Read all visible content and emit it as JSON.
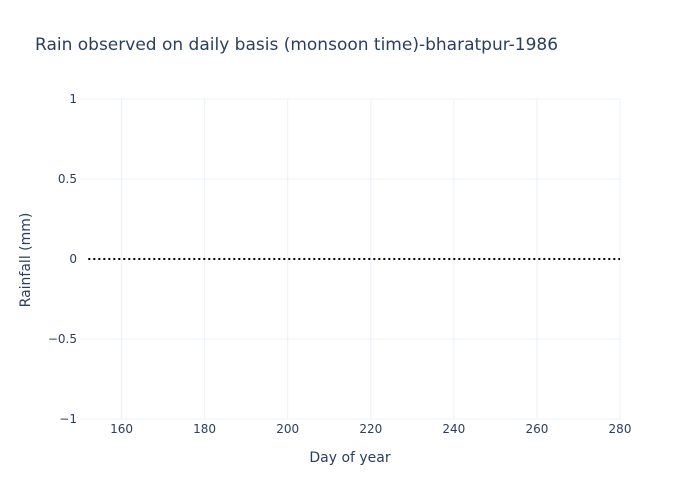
{
  "chart_data": {
    "type": "line",
    "title": "Rain observed on daily basis (monsoon time)-bharatpur-1986",
    "xlabel": "Day of year",
    "ylabel": "Rainfall (mm)",
    "xlim": [
      150,
      280
    ],
    "ylim": [
      -1,
      1
    ],
    "x_ticks": [
      160,
      180,
      200,
      220,
      240,
      260,
      280
    ],
    "y_ticks": [
      1,
      0.5,
      0,
      -0.5,
      -1
    ],
    "y_tick_labels": [
      "1",
      "0.5",
      "0",
      "−0.5",
      "−1"
    ],
    "grid": true,
    "line_style": "dotted",
    "line_color": "#000000",
    "series": [
      {
        "x": [
          152,
          153,
          154,
          155,
          156,
          157,
          158,
          159,
          160,
          161,
          162,
          163,
          164,
          165,
          166,
          167,
          168,
          169,
          170,
          171,
          172,
          173,
          174,
          175,
          176,
          177,
          178,
          179,
          180,
          181,
          182,
          183,
          184,
          185,
          186,
          187,
          188,
          189,
          190,
          191,
          192,
          193,
          194,
          195,
          196,
          197,
          198,
          199,
          200,
          201,
          202,
          203,
          204,
          205,
          206,
          207,
          208,
          209,
          210,
          211,
          212,
          213,
          214,
          215,
          216,
          217,
          218,
          219,
          220,
          221,
          222,
          223,
          224,
          225,
          226,
          227,
          228,
          229,
          230,
          231,
          232,
          233,
          234,
          235,
          236,
          237,
          238,
          239,
          240,
          241,
          242,
          243,
          244,
          245,
          246,
          247,
          248,
          249,
          250,
          251,
          252,
          253,
          254,
          255,
          256,
          257,
          258,
          259,
          260,
          261,
          262,
          263,
          264,
          265,
          266,
          267,
          268,
          269,
          270,
          271,
          272,
          273,
          274,
          275,
          276,
          277,
          278,
          279,
          280
        ],
        "y": [
          0,
          0,
          0,
          0,
          0,
          0,
          0,
          0,
          0,
          0,
          0,
          0,
          0,
          0,
          0,
          0,
          0,
          0,
          0,
          0,
          0,
          0,
          0,
          0,
          0,
          0,
          0,
          0,
          0,
          0,
          0,
          0,
          0,
          0,
          0,
          0,
          0,
          0,
          0,
          0,
          0,
          0,
          0,
          0,
          0,
          0,
          0,
          0,
          0,
          0,
          0,
          0,
          0,
          0,
          0,
          0,
          0,
          0,
          0,
          0,
          0,
          0,
          0,
          0,
          0,
          0,
          0,
          0,
          0,
          0,
          0,
          0,
          0,
          0,
          0,
          0,
          0,
          0,
          0,
          0,
          0,
          0,
          0,
          0,
          0,
          0,
          0,
          0,
          0,
          0,
          0,
          0,
          0,
          0,
          0,
          0,
          0,
          0,
          0,
          0,
          0,
          0,
          0,
          0,
          0,
          0,
          0,
          0,
          0,
          0,
          0,
          0,
          0,
          0,
          0,
          0,
          0,
          0,
          0,
          0,
          0,
          0,
          0,
          0,
          0,
          0,
          0,
          0,
          0
        ]
      }
    ]
  }
}
